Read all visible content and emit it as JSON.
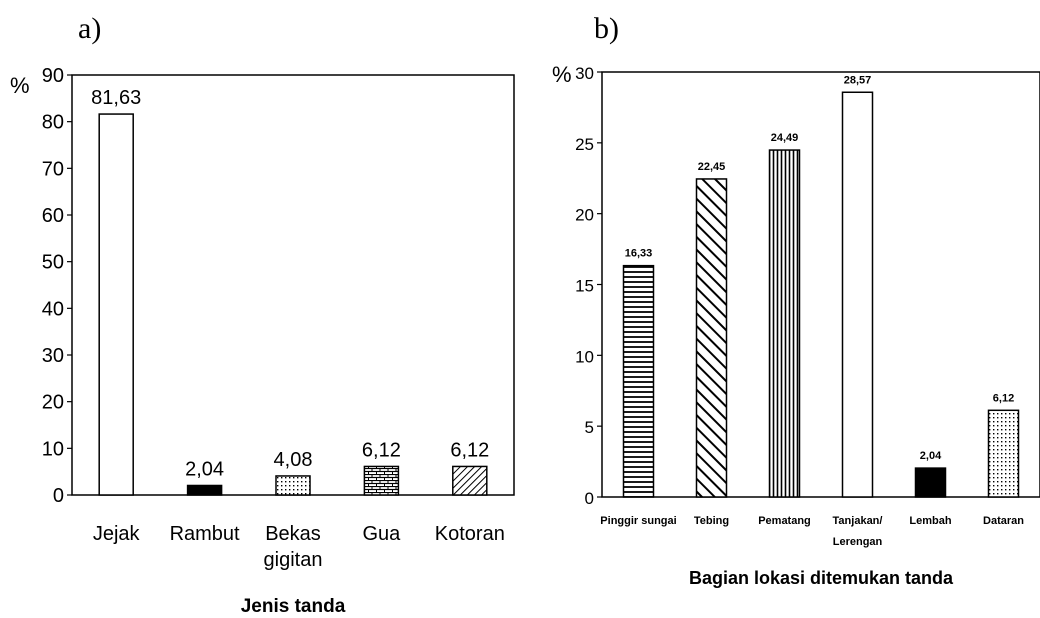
{
  "chart_data": [
    {
      "panel": "a)",
      "type": "bar",
      "ylabel": "%",
      "xlabel": "Jenis tanda",
      "ylim": [
        0,
        90
      ],
      "yticks": [
        0,
        10,
        20,
        30,
        40,
        50,
        60,
        70,
        80,
        90
      ],
      "categories": [
        [
          "Jejak"
        ],
        [
          "Rambut"
        ],
        [
          "Bekas",
          "gigitan"
        ],
        [
          "Gua"
        ],
        [
          "Kotoran"
        ]
      ],
      "values": [
        81.63,
        2.04,
        4.08,
        6.12,
        6.12
      ],
      "data_labels": [
        "81,63",
        "2,04",
        "4,08",
        "6,12",
        "6,12"
      ],
      "fills": [
        "white",
        "black",
        "dots",
        "bricks",
        "diagonal"
      ],
      "grid": false
    },
    {
      "panel": "b)",
      "type": "bar",
      "ylabel": "%",
      "xlabel": "Bagian lokasi ditemukan tanda",
      "ylim": [
        0,
        30
      ],
      "yticks": [
        0,
        5,
        10,
        15,
        20,
        25,
        30
      ],
      "categories": [
        [
          "Pinggir sungai"
        ],
        [
          "Tebing"
        ],
        [
          "Pematang"
        ],
        [
          "Tanjakan/",
          "Lerengan"
        ],
        [
          "Lembah"
        ],
        [
          "Dataran"
        ]
      ],
      "values": [
        16.33,
        22.45,
        24.49,
        28.57,
        2.04,
        6.12
      ],
      "data_labels": [
        "16,33",
        "22,45",
        "24,49",
        "28,57",
        "2,04",
        "6,12"
      ],
      "fills": [
        "hlines",
        "diagonal-wide",
        "vlines",
        "white",
        "black",
        "dots"
      ],
      "grid": false
    }
  ]
}
